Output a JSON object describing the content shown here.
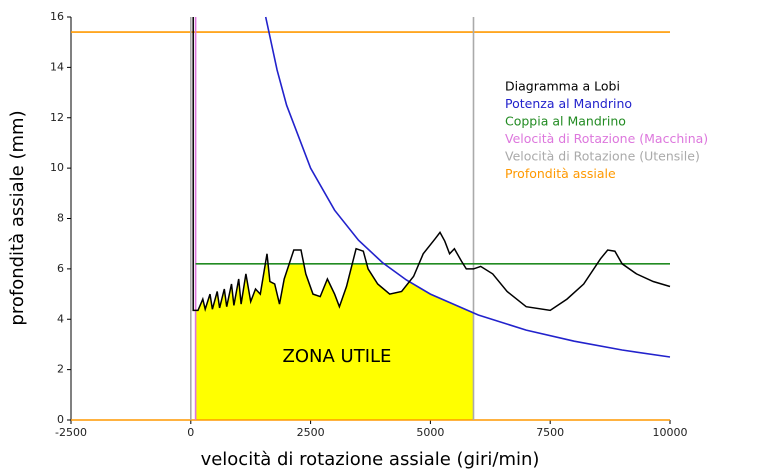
{
  "chart_data": {
    "type": "line",
    "xlabel": "velocità di rotazione assiale (giri/min)",
    "ylabel": "profondità assiale (mm)",
    "xlim": [
      -2500,
      10000
    ],
    "xticks": [
      -2500,
      0,
      2500,
      5000,
      7500,
      10000
    ],
    "ylim": [
      0,
      16
    ],
    "yticks": [
      0,
      2,
      4,
      6,
      8,
      10,
      12,
      14,
      16
    ],
    "zone": {
      "label": "ZONA UTILE",
      "color": "#ffff00"
    },
    "series": [
      {
        "name": "Diagramma a Lobi",
        "color": "#000000",
        "x": [
          50,
          50,
          150,
          250,
          300,
          400,
          450,
          550,
          600,
          700,
          750,
          850,
          900,
          1000,
          1050,
          1150,
          1250,
          1350,
          1450,
          1590,
          1650,
          1750,
          1850,
          1950,
          2150,
          2300,
          2400,
          2550,
          2700,
          2850,
          3000,
          3100,
          3250,
          3450,
          3600,
          3700,
          3900,
          4150,
          4400,
          4650,
          4850,
          5100,
          5200,
          5300,
          5400,
          5500,
          5650,
          5750,
          5900,
          6050,
          6300,
          6600,
          7000,
          7500,
          7850,
          8200,
          8550,
          8700,
          8850,
          9000,
          9300,
          9650,
          10000
        ],
        "values": [
          16,
          4.35,
          4.35,
          4.8,
          4.4,
          5.0,
          4.4,
          5.1,
          4.45,
          5.2,
          4.5,
          5.4,
          4.55,
          5.6,
          4.6,
          5.8,
          4.7,
          5.2,
          5.0,
          6.6,
          5.5,
          5.4,
          4.6,
          5.6,
          6.75,
          6.75,
          5.8,
          5.0,
          4.9,
          5.6,
          5.0,
          4.5,
          5.3,
          6.8,
          6.7,
          6.0,
          5.4,
          5.0,
          5.1,
          5.7,
          6.6,
          7.2,
          7.45,
          7.1,
          6.6,
          6.8,
          6.3,
          6.0,
          6.0,
          6.1,
          5.8,
          5.1,
          4.5,
          4.35,
          4.8,
          5.4,
          6.4,
          6.75,
          6.7,
          6.2,
          5.8,
          5.5,
          5.3
        ]
      },
      {
        "name": "Potenza al Mandrino",
        "color": "#2222cc",
        "x": [
          1563,
          1800,
          2000,
          2500,
          3000,
          3500,
          4000,
          4500,
          5000,
          6000,
          7000,
          8000,
          9000,
          10000
        ],
        "values": [
          16,
          13.89,
          12.5,
          10,
          8.33,
          7.14,
          6.25,
          5.56,
          5,
          4.17,
          3.57,
          3.13,
          2.78,
          2.5
        ]
      },
      {
        "name": "Coppia al Mandrino",
        "color": "#228b22",
        "x": [
          100,
          10000
        ],
        "values": [
          6.2,
          6.2
        ]
      },
      {
        "name": "Velocità di Rotazione (Macchina)",
        "color": "#dd77dd",
        "x": [
          100,
          100
        ],
        "values": [
          0,
          16
        ]
      },
      {
        "name": "Velocità di Rotazione (Utensile)",
        "color": "#aaaaaa",
        "x": [
          0,
          0,
          null,
          5900,
          5900
        ],
        "values": [
          0,
          16,
          null,
          0,
          16
        ]
      },
      {
        "name": "Profondità assiale",
        "color": "#ff9900",
        "x": [
          -2500,
          10000,
          null,
          -2500,
          10000
        ],
        "values": [
          15.4,
          15.4,
          null,
          0,
          0
        ]
      }
    ]
  }
}
